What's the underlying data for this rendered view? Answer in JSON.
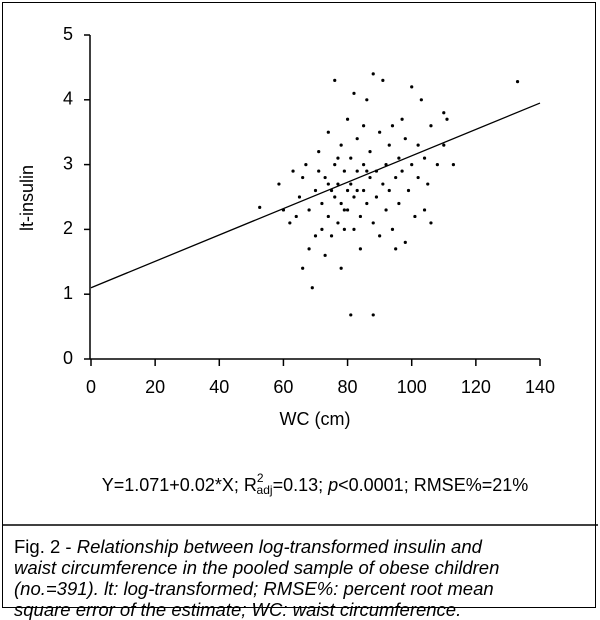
{
  "chart_data": {
    "type": "scatter",
    "x_label": "WC (cm)",
    "y_label": "lt-insulin",
    "color": "#000000",
    "xlim": [
      0,
      140
    ],
    "xticks": [
      0,
      20,
      40,
      60,
      80,
      100,
      120,
      140
    ],
    "ylim": [
      0,
      5
    ],
    "yticks": [
      0,
      1,
      2,
      3,
      4,
      5
    ],
    "x": [
      52.6,
      58.6,
      62,
      63,
      64,
      65,
      66,
      67,
      68,
      69,
      68,
      70,
      70,
      71,
      72,
      72,
      73,
      73,
      74,
      74,
      75,
      75,
      76,
      76,
      76,
      77,
      77,
      78,
      78,
      78,
      79,
      79,
      80,
      80,
      80,
      81,
      81,
      81,
      82,
      82,
      82,
      83,
      83,
      84,
      84,
      85,
      85,
      85,
      86,
      86,
      87,
      87,
      88,
      88,
      88,
      89,
      89,
      90,
      90,
      91,
      91,
      92,
      92,
      93,
      93,
      94,
      94,
      95,
      95,
      96,
      96,
      97,
      97,
      98,
      98,
      99,
      100,
      100,
      101,
      102,
      102,
      103,
      104,
      104,
      105,
      106,
      106,
      108,
      110,
      110,
      111,
      113,
      133,
      60,
      66,
      71,
      74,
      77,
      79,
      83,
      86
    ],
    "y": [
      2.34,
      2.7,
      2.1,
      2.9,
      2.2,
      2.5,
      1.4,
      3.0,
      2.3,
      1.1,
      1.7,
      2.6,
      1.9,
      3.2,
      2.4,
      2.0,
      2.8,
      1.6,
      3.5,
      2.2,
      2.6,
      1.9,
      4.3,
      3.0,
      2.5,
      2.1,
      2.7,
      3.3,
      2.4,
      1.4,
      2.0,
      2.9,
      3.7,
      2.6,
      2.3,
      0.68,
      3.1,
      2.7,
      4.1,
      2.0,
      2.5,
      3.4,
      2.9,
      2.2,
      1.7,
      3.6,
      2.6,
      3.0,
      4.0,
      2.4,
      2.8,
      3.2,
      0.68,
      4.4,
      2.1,
      2.9,
      2.5,
      3.5,
      1.9,
      4.3,
      2.7,
      3.0,
      2.3,
      3.3,
      2.6,
      2.0,
      3.6,
      2.8,
      1.7,
      3.1,
      2.4,
      3.7,
      2.9,
      1.8,
      3.4,
      2.6,
      4.2,
      3.0,
      2.2,
      3.3,
      2.8,
      4.0,
      3.1,
      2.3,
      2.7,
      3.6,
      2.1,
      3.0,
      3.3,
      3.8,
      3.7,
      3.0,
      4.28,
      2.3,
      2.8,
      2.9,
      2.7,
      3.1,
      2.3,
      2.6,
      2.9
    ],
    "fit": {
      "x": [
        0,
        140
      ],
      "y": [
        1.1,
        3.95
      ]
    },
    "equation": {
      "start": "Y=1.071+0.02*X; R",
      "sup": "2",
      "sub": "adj",
      "mid": "=0.13; ",
      "p": "p",
      "end": "<0.0001; RMSE%=21%"
    }
  },
  "caption": {
    "label": "Fig. 2 - ",
    "lines": [
      "Relationship between log-transformed insulin and",
      "waist circumference in the pooled sample of obese children",
      "(no.=391). lt: log-transformed; RMSE%: percent root mean",
      "square error of the estimate; WC: waist circumference."
    ]
  }
}
